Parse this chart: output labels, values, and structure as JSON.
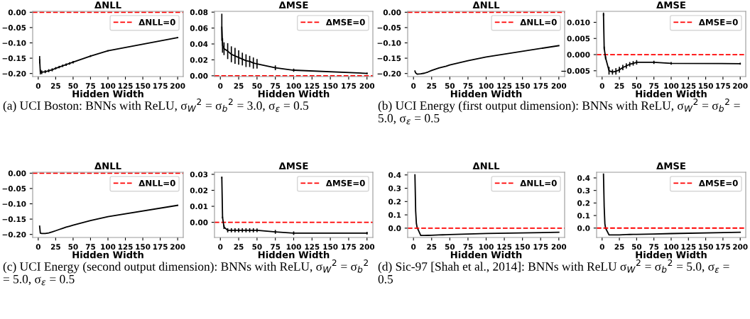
{
  "chart_data": [
    {
      "type": "line",
      "title": "ΔNLL",
      "xlabel": "Hidden Width",
      "x": [
        2,
        3,
        5,
        10,
        15,
        20,
        25,
        30,
        35,
        40,
        45,
        50,
        75,
        100,
        200
      ],
      "xlim": [
        -8,
        208
      ],
      "xticks": [
        0,
        25,
        50,
        75,
        100,
        125,
        150,
        175,
        200
      ],
      "ylim": [
        -0.21,
        0.003
      ],
      "yticks": [
        {
          "value": -0.2,
          "label": "−0.20"
        },
        {
          "value": -0.15,
          "label": "−0.15"
        },
        {
          "value": -0.1,
          "label": "−0.10"
        },
        {
          "value": -0.05,
          "label": "−0.05"
        },
        {
          "value": 0,
          "label": "0.00"
        }
      ],
      "series": [
        {
          "color": "#000000",
          "values": [
            -0.155,
            -0.195,
            -0.196,
            -0.194,
            -0.191,
            -0.188,
            -0.183,
            -0.179,
            -0.175,
            -0.171,
            -0.167,
            -0.163,
            -0.143,
            -0.126,
            -0.083
          ],
          "errors": [
            0.012,
            0.008,
            0.006,
            0.005,
            0.005,
            0.005,
            0.004,
            0.004,
            0.004,
            0.004,
            0.004,
            0.004,
            0.003,
            0.002,
            0.002
          ]
        }
      ],
      "ref_lines": [
        {
          "axis": "y",
          "value": 0,
          "label": "ΔNLL=0",
          "color": "#ff0000",
          "line_style": "dashed"
        }
      ],
      "legend": "top right",
      "grid": false,
      "marker": "none",
      "line_style": "solid",
      "annotations": [
        "(a) UCI Boston: BNNs with ReLU, σ$_{W}$$^{2}$ = σ$_{b}$$^{2}$ = 3.0, σ$_{ε}$ = 0.5"
      ]
    },
    {
      "type": "line",
      "title": "ΔMSE",
      "xlabel": "Hidden Width",
      "x": [
        2,
        3,
        5,
        10,
        15,
        20,
        25,
        30,
        35,
        40,
        45,
        50,
        75,
        100,
        200
      ],
      "xlim": [
        -8,
        208
      ],
      "xticks": [
        0,
        25,
        50,
        75,
        100,
        125,
        150,
        175,
        200
      ],
      "ylim": [
        -0.001,
        0.081
      ],
      "yticks": [
        {
          "value": 0,
          "label": "0.00"
        },
        {
          "value": 0.02,
          "label": "0.02"
        },
        {
          "value": 0.04,
          "label": "0.04"
        },
        {
          "value": 0.06,
          "label": "0.06"
        },
        {
          "value": 0.08,
          "label": "0.08"
        }
      ],
      "series": [
        {
          "color": "#000000",
          "values": [
            0.061,
            0.038,
            0.034,
            0.031,
            0.027,
            0.025,
            0.023,
            0.021,
            0.019,
            0.018,
            0.016,
            0.015,
            0.01,
            0.007,
            0.003
          ],
          "errors": [
            0.017,
            0.009,
            0.008,
            0.01,
            0.01,
            0.01,
            0.009,
            0.008,
            0.008,
            0.007,
            0.007,
            0.006,
            0.003,
            0.002,
            0.001
          ]
        }
      ],
      "ref_lines": [
        {
          "axis": "y",
          "value": 0,
          "label": "ΔMSE=0",
          "color": "#ff0000",
          "line_style": "dashed"
        }
      ],
      "legend": "top right",
      "grid": false,
      "marker": "none",
      "line_style": "solid"
    },
    {
      "type": "line",
      "title": "ΔNLL",
      "xlabel": "Hidden Width",
      "x": [
        2,
        3,
        5,
        10,
        15,
        20,
        25,
        30,
        35,
        40,
        45,
        50,
        75,
        100,
        200
      ],
      "xlim": [
        -8,
        208
      ],
      "xticks": [
        0,
        25,
        50,
        75,
        100,
        125,
        150,
        175,
        200
      ],
      "ylim": [
        -0.21,
        0.003
      ],
      "yticks": [
        {
          "value": -0.2,
          "label": "−0.20"
        },
        {
          "value": -0.15,
          "label": "−0.15"
        },
        {
          "value": -0.1,
          "label": "−0.10"
        },
        {
          "value": -0.05,
          "label": "−0.05"
        },
        {
          "value": 0,
          "label": "0.00"
        }
      ],
      "series": [
        {
          "color": "#000000",
          "values": [
            -0.192,
            -0.198,
            -0.202,
            -0.201,
            -0.199,
            -0.195,
            -0.19,
            -0.186,
            -0.182,
            -0.179,
            -0.176,
            -0.172,
            -0.158,
            -0.146,
            -0.109
          ]
        }
      ],
      "ref_lines": [
        {
          "axis": "y",
          "value": 0,
          "label": "ΔNLL=0",
          "color": "#ff0000",
          "line_style": "dashed"
        }
      ],
      "legend": "top right",
      "grid": false,
      "marker": "none",
      "line_style": "solid",
      "annotations": [
        "(b) UCI Energy (first output dimension): BNNs with ReLU, σ$_{W}$$^{2}$ = σ$_{b}$$^{2}$ = 5.0, σ$_{ε}$ = 0.5"
      ]
    },
    {
      "type": "line",
      "title": "ΔMSE",
      "xlabel": "Hidden Width",
      "x": [
        2,
        3,
        5,
        10,
        15,
        20,
        25,
        30,
        35,
        40,
        45,
        50,
        75,
        100,
        200
      ],
      "xlim": [
        -8,
        208
      ],
      "xticks": [
        0,
        25,
        50,
        75,
        100,
        125,
        150,
        175,
        200
      ],
      "ylim": [
        -0.0068,
        0.0134
      ],
      "yticks": [
        {
          "value": -0.005,
          "label": "−0.005"
        },
        {
          "value": 0,
          "label": "0.000"
        },
        {
          "value": 0.005,
          "label": "0.005"
        },
        {
          "value": 0.01,
          "label": "0.010"
        }
      ],
      "series": [
        {
          "color": "#000000",
          "values": [
            0.0125,
            0.002,
            -0.001,
            -0.005,
            -0.0054,
            -0.0052,
            -0.0047,
            -0.004,
            -0.0035,
            -0.003,
            -0.0027,
            -0.0024,
            -0.0024,
            -0.0027,
            -0.0028
          ],
          "errors": [
            0.0005,
            0.0005,
            0.0005,
            0.0012,
            0.0008,
            0.001,
            0.0009,
            0.0008,
            0.0008,
            0.0007,
            0.0007,
            0.0007,
            0.0005,
            0.0004,
            0.0003
          ]
        }
      ],
      "ref_lines": [
        {
          "axis": "y",
          "value": 0,
          "label": "ΔMSE=0",
          "color": "#ff0000",
          "line_style": "dashed"
        }
      ],
      "legend": "top right",
      "grid": false,
      "marker": "none",
      "line_style": "solid"
    },
    {
      "type": "line",
      "title": "ΔNLL",
      "xlabel": "Hidden Width",
      "x": [
        2,
        3,
        5,
        10,
        15,
        20,
        25,
        30,
        35,
        40,
        45,
        50,
        75,
        100,
        200
      ],
      "xlim": [
        -8,
        208
      ],
      "xticks": [
        0,
        25,
        50,
        75,
        100,
        125,
        150,
        175,
        200
      ],
      "ylim": [
        -0.21,
        0.003
      ],
      "yticks": [
        {
          "value": -0.2,
          "label": "−0.20"
        },
        {
          "value": -0.15,
          "label": "−0.15"
        },
        {
          "value": -0.1,
          "label": "−0.10"
        },
        {
          "value": -0.05,
          "label": "−0.05"
        },
        {
          "value": 0,
          "label": "0.00"
        }
      ],
      "series": [
        {
          "color": "#000000",
          "values": [
            -0.173,
            -0.196,
            -0.197,
            -0.197,
            -0.195,
            -0.192,
            -0.188,
            -0.184,
            -0.18,
            -0.176,
            -0.173,
            -0.17,
            -0.155,
            -0.142,
            -0.105
          ]
        }
      ],
      "ref_lines": [
        {
          "axis": "y",
          "value": 0,
          "label": "ΔNLL=0",
          "color": "#ff0000",
          "line_style": "dashed"
        }
      ],
      "legend": "top right",
      "grid": false,
      "marker": "none",
      "line_style": "solid",
      "annotations": [
        "(c) UCI Energy (second output dimension): BNNs with ReLU, σ$_{W}$$^{2}$ = σ$_{b}$$^{2}$ = 5.0, σ$_{ε}$ = 0.5"
      ]
    },
    {
      "type": "line",
      "title": "ΔMSE",
      "xlabel": "Hidden Width",
      "x": [
        2,
        3,
        5,
        10,
        15,
        20,
        25,
        30,
        35,
        40,
        45,
        50,
        75,
        100,
        200
      ],
      "xlim": [
        -8,
        208
      ],
      "xticks": [
        0,
        25,
        50,
        75,
        100,
        125,
        150,
        175,
        200
      ],
      "ylim": [
        -0.0095,
        0.0313
      ],
      "yticks": [
        {
          "value": 0,
          "label": "0.00"
        },
        {
          "value": 0.01,
          "label": "0.01"
        },
        {
          "value": 0.02,
          "label": "0.02"
        },
        {
          "value": 0.03,
          "label": "0.03"
        }
      ],
      "series": [
        {
          "color": "#000000",
          "values": [
            0.028,
            0.003,
            -0.003,
            -0.005,
            -0.005,
            -0.005,
            -0.005,
            -0.005,
            -0.005,
            -0.005,
            -0.005,
            -0.005,
            -0.006,
            -0.0068,
            -0.0068
          ],
          "errors": [
            0.0005,
            0.0005,
            0.0012,
            0.0013,
            0.0013,
            0.0013,
            0.0013,
            0.0013,
            0.0013,
            0.0013,
            0.0013,
            0.0012,
            0.0012,
            0.0011,
            0.0008
          ]
        }
      ],
      "ref_lines": [
        {
          "axis": "y",
          "value": 0,
          "label": "ΔMSE=0",
          "color": "#ff0000",
          "line_style": "dashed"
        }
      ],
      "legend": "top right",
      "grid": false,
      "marker": "none",
      "line_style": "solid"
    },
    {
      "type": "line",
      "title": "ΔNLL",
      "xlabel": "Hidden Width",
      "x": [
        2,
        3,
        4,
        5,
        10,
        15,
        20,
        25,
        30,
        35,
        40,
        45,
        50,
        75,
        100,
        200
      ],
      "xlim": [
        -8,
        208
      ],
      "xticks": [
        0,
        25,
        50,
        75,
        100,
        125,
        150,
        175,
        200
      ],
      "ylim": [
        -0.07,
        0.42
      ],
      "yticks": [
        {
          "value": 0,
          "label": "0.0"
        },
        {
          "value": 0.1,
          "label": "0.1"
        },
        {
          "value": 0.2,
          "label": "0.2"
        },
        {
          "value": 0.3,
          "label": "0.3"
        },
        {
          "value": 0.4,
          "label": "0.4"
        }
      ],
      "series": [
        {
          "color": "#000000",
          "values": [
            0.4,
            0.13,
            0.035,
            0.005,
            -0.055,
            -0.055,
            -0.054,
            -0.053,
            -0.052,
            -0.051,
            -0.05,
            -0.049,
            -0.048,
            -0.044,
            -0.04,
            -0.031
          ]
        }
      ],
      "ref_lines": [
        {
          "axis": "y",
          "value": 0,
          "label": "ΔNLL=0",
          "color": "#ff0000",
          "line_style": "dashed"
        }
      ],
      "legend": "top right",
      "grid": false,
      "marker": "none",
      "line_style": "solid",
      "annotations": [
        "(d) Sic-97 [Shah et al., 2014]: BNNs with ReLU σ$_{W}$$^{2}$ = σ$_{b}$$^{2}$ = 5.0, σ$_{ε}$ = 0.5"
      ]
    },
    {
      "type": "line",
      "title": "ΔMSE",
      "xlabel": "Hidden Width",
      "x": [
        2,
        3,
        4,
        5,
        10,
        15,
        20,
        25,
        30,
        35,
        40,
        45,
        50,
        75,
        100,
        200
      ],
      "xlim": [
        -8,
        208
      ],
      "xticks": [
        0,
        25,
        50,
        75,
        100,
        125,
        150,
        175,
        200
      ],
      "ylim": [
        -0.075,
        0.445
      ],
      "yticks": [
        {
          "value": 0,
          "label": "0.0"
        },
        {
          "value": 0.1,
          "label": "0.1"
        },
        {
          "value": 0.2,
          "label": "0.2"
        },
        {
          "value": 0.3,
          "label": "0.3"
        },
        {
          "value": 0.4,
          "label": "0.4"
        }
      ],
      "series": [
        {
          "color": "#000000",
          "values": [
            0.43,
            0.17,
            0.035,
            0.0,
            -0.055,
            -0.055,
            -0.055,
            -0.054,
            -0.053,
            -0.052,
            -0.051,
            -0.05,
            -0.05,
            -0.047,
            -0.044,
            -0.033
          ]
        }
      ],
      "ref_lines": [
        {
          "axis": "y",
          "value": 0,
          "label": "ΔMSE=0",
          "color": "#ff0000",
          "line_style": "dashed"
        }
      ],
      "legend": "top right",
      "grid": false,
      "marker": "none",
      "line_style": "solid"
    }
  ]
}
